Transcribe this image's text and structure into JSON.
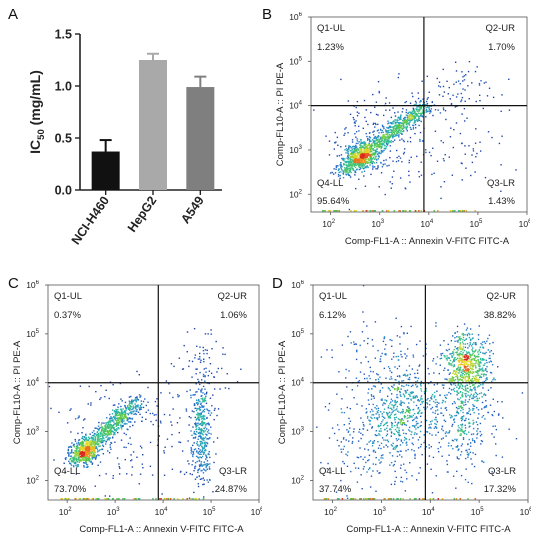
{
  "panels": {
    "A": {
      "letter": "A"
    },
    "B": {
      "letter": "B"
    },
    "C": {
      "letter": "C"
    },
    "D": {
      "letter": "D"
    }
  },
  "chart_data": [
    {
      "id": "A",
      "type": "bar",
      "categories": [
        "NCI-H460",
        "HepG2",
        "A549"
      ],
      "values": [
        0.37,
        1.25,
        0.99
      ],
      "errors": [
        0.11,
        0.06,
        0.1
      ],
      "colors": [
        "#111111",
        "#a9a9a9",
        "#7f7f7f"
      ],
      "ylabel_main": "IC",
      "ylabel_sub": "50",
      "ylabel_unit": " (mg/mL)",
      "ylim": [
        0,
        1.5
      ],
      "yticks": [
        {
          "v": 0.0,
          "label": "0.0"
        },
        {
          "v": 0.5,
          "label": "0.5"
        },
        {
          "v": 1.0,
          "label": "1.0"
        },
        {
          "v": 1.5,
          "label": "1.5"
        }
      ]
    },
    {
      "id": "B",
      "type": "scatter",
      "subtype": "flow-cytometry-density",
      "xlabel": "Comp-FL1-A :: Annexin V-FITC FITC-A",
      "ylabel": "Comp-FL10-A :: PI PE-A",
      "xlim_log10": [
        1.6,
        6.0
      ],
      "ylim_log10": [
        1.6,
        6.0
      ],
      "gate_log10": {
        "x": 3.9,
        "y": 4.0
      },
      "ticks": [
        {
          "v": 2,
          "label": "10",
          "exp": "2"
        },
        {
          "v": 3,
          "label": "10",
          "exp": "3"
        },
        {
          "v": 4,
          "label": "10",
          "exp": "4"
        },
        {
          "v": 5,
          "label": "10",
          "exp": "5"
        },
        {
          "v": 6,
          "label": "10",
          "exp": "6"
        }
      ],
      "quadrants": {
        "UL": {
          "name": "Q1-UL",
          "value": "1.23%"
        },
        "UR": {
          "name": "Q2-UR",
          "value": "1.70%"
        },
        "LL": {
          "name": "Q4-LL",
          "value": "95.64%"
        },
        "LR": {
          "name": "Q3-LR",
          "value": "1.43%"
        }
      },
      "populations": [
        {
          "kind": "diag",
          "x0": 2.2,
          "y0": 2.5,
          "x1": 3.95,
          "y1": 4.0,
          "spread": 0.1,
          "n": 900
        },
        {
          "kind": "blob",
          "cx": 2.65,
          "cy": 2.85,
          "sx": 0.18,
          "sy": 0.16,
          "n": 350
        },
        {
          "kind": "blob",
          "cx": 3.0,
          "cy": 3.2,
          "sx": 0.55,
          "sy": 0.55,
          "n": 220
        },
        {
          "kind": "blob",
          "cx": 4.6,
          "cy": 4.3,
          "sx": 0.45,
          "sy": 0.35,
          "n": 70
        },
        {
          "kind": "blob",
          "cx": 4.6,
          "cy": 2.9,
          "sx": 0.6,
          "sy": 0.5,
          "n": 60
        }
      ]
    },
    {
      "id": "C",
      "type": "scatter",
      "subtype": "flow-cytometry-density",
      "xlabel": "Comp-FL1-A :: Annexin V-FITC FITC-A",
      "ylabel": "Comp-FL10-A :: PI PE-A",
      "xlim_log10": [
        1.6,
        6.0
      ],
      "ylim_log10": [
        1.6,
        6.0
      ],
      "gate_log10": {
        "x": 3.9,
        "y": 4.0
      },
      "ticks": [
        {
          "v": 2,
          "label": "10",
          "exp": "2"
        },
        {
          "v": 3,
          "label": "10",
          "exp": "3"
        },
        {
          "v": 4,
          "label": "10",
          "exp": "4"
        },
        {
          "v": 5,
          "label": "10",
          "exp": "5"
        },
        {
          "v": 6,
          "label": "10",
          "exp": "6"
        }
      ],
      "quadrants": {
        "UL": {
          "name": "Q1-UL",
          "value": "0.37%"
        },
        "UR": {
          "name": "Q2-UR",
          "value": "1.06%"
        },
        "LL": {
          "name": "Q4-LL",
          "value": "73.70%"
        },
        "LR": {
          "name": "Q3-LR",
          "value": "24.87%"
        }
      },
      "populations": [
        {
          "kind": "diag",
          "x0": 2.1,
          "y0": 2.4,
          "x1": 3.5,
          "y1": 3.6,
          "spread": 0.1,
          "n": 750
        },
        {
          "kind": "blob",
          "cx": 2.4,
          "cy": 2.6,
          "sx": 0.15,
          "sy": 0.13,
          "n": 300
        },
        {
          "kind": "blob",
          "cx": 4.8,
          "cy": 3.0,
          "sx": 0.1,
          "sy": 0.6,
          "n": 420
        },
        {
          "kind": "blob",
          "cx": 3.4,
          "cy": 3.0,
          "sx": 0.7,
          "sy": 0.6,
          "n": 200
        },
        {
          "kind": "blob",
          "cx": 4.9,
          "cy": 4.4,
          "sx": 0.25,
          "sy": 0.35,
          "n": 60
        }
      ]
    },
    {
      "id": "D",
      "type": "scatter",
      "subtype": "flow-cytometry-density",
      "xlabel": "Comp-FL1-A :: Annexin V-FITC FITC-A",
      "ylabel": "Comp-FL10-A :: PI PE-A",
      "xlim_log10": [
        1.6,
        6.0
      ],
      "ylim_log10": [
        1.6,
        6.0
      ],
      "gate_log10": {
        "x": 3.9,
        "y": 4.0
      },
      "ticks": [
        {
          "v": 2,
          "label": "10",
          "exp": "2"
        },
        {
          "v": 3,
          "label": "10",
          "exp": "3"
        },
        {
          "v": 4,
          "label": "10",
          "exp": "4"
        },
        {
          "v": 5,
          "label": "10",
          "exp": "5"
        },
        {
          "v": 6,
          "label": "10",
          "exp": "6"
        }
      ],
      "quadrants": {
        "UL": {
          "name": "Q1-UL",
          "value": "6.12%"
        },
        "UR": {
          "name": "Q2-UR",
          "value": "38.82%"
        },
        "LL": {
          "name": "Q4-LL",
          "value": "37.74%"
        },
        "LR": {
          "name": "Q3-LR",
          "value": "17.32%"
        }
      },
      "populations": [
        {
          "kind": "blob",
          "cx": 4.75,
          "cy": 4.35,
          "sx": 0.22,
          "sy": 0.35,
          "n": 650
        },
        {
          "kind": "blob",
          "cx": 3.4,
          "cy": 3.5,
          "sx": 0.45,
          "sy": 0.45,
          "n": 500
        },
        {
          "kind": "blob",
          "cx": 4.7,
          "cy": 3.2,
          "sx": 0.35,
          "sy": 0.5,
          "n": 280
        },
        {
          "kind": "blob",
          "cx": 3.0,
          "cy": 2.7,
          "sx": 0.6,
          "sy": 0.5,
          "n": 260
        },
        {
          "kind": "blob",
          "cx": 3.0,
          "cy": 4.6,
          "sx": 0.5,
          "sy": 0.4,
          "n": 90
        }
      ]
    }
  ]
}
